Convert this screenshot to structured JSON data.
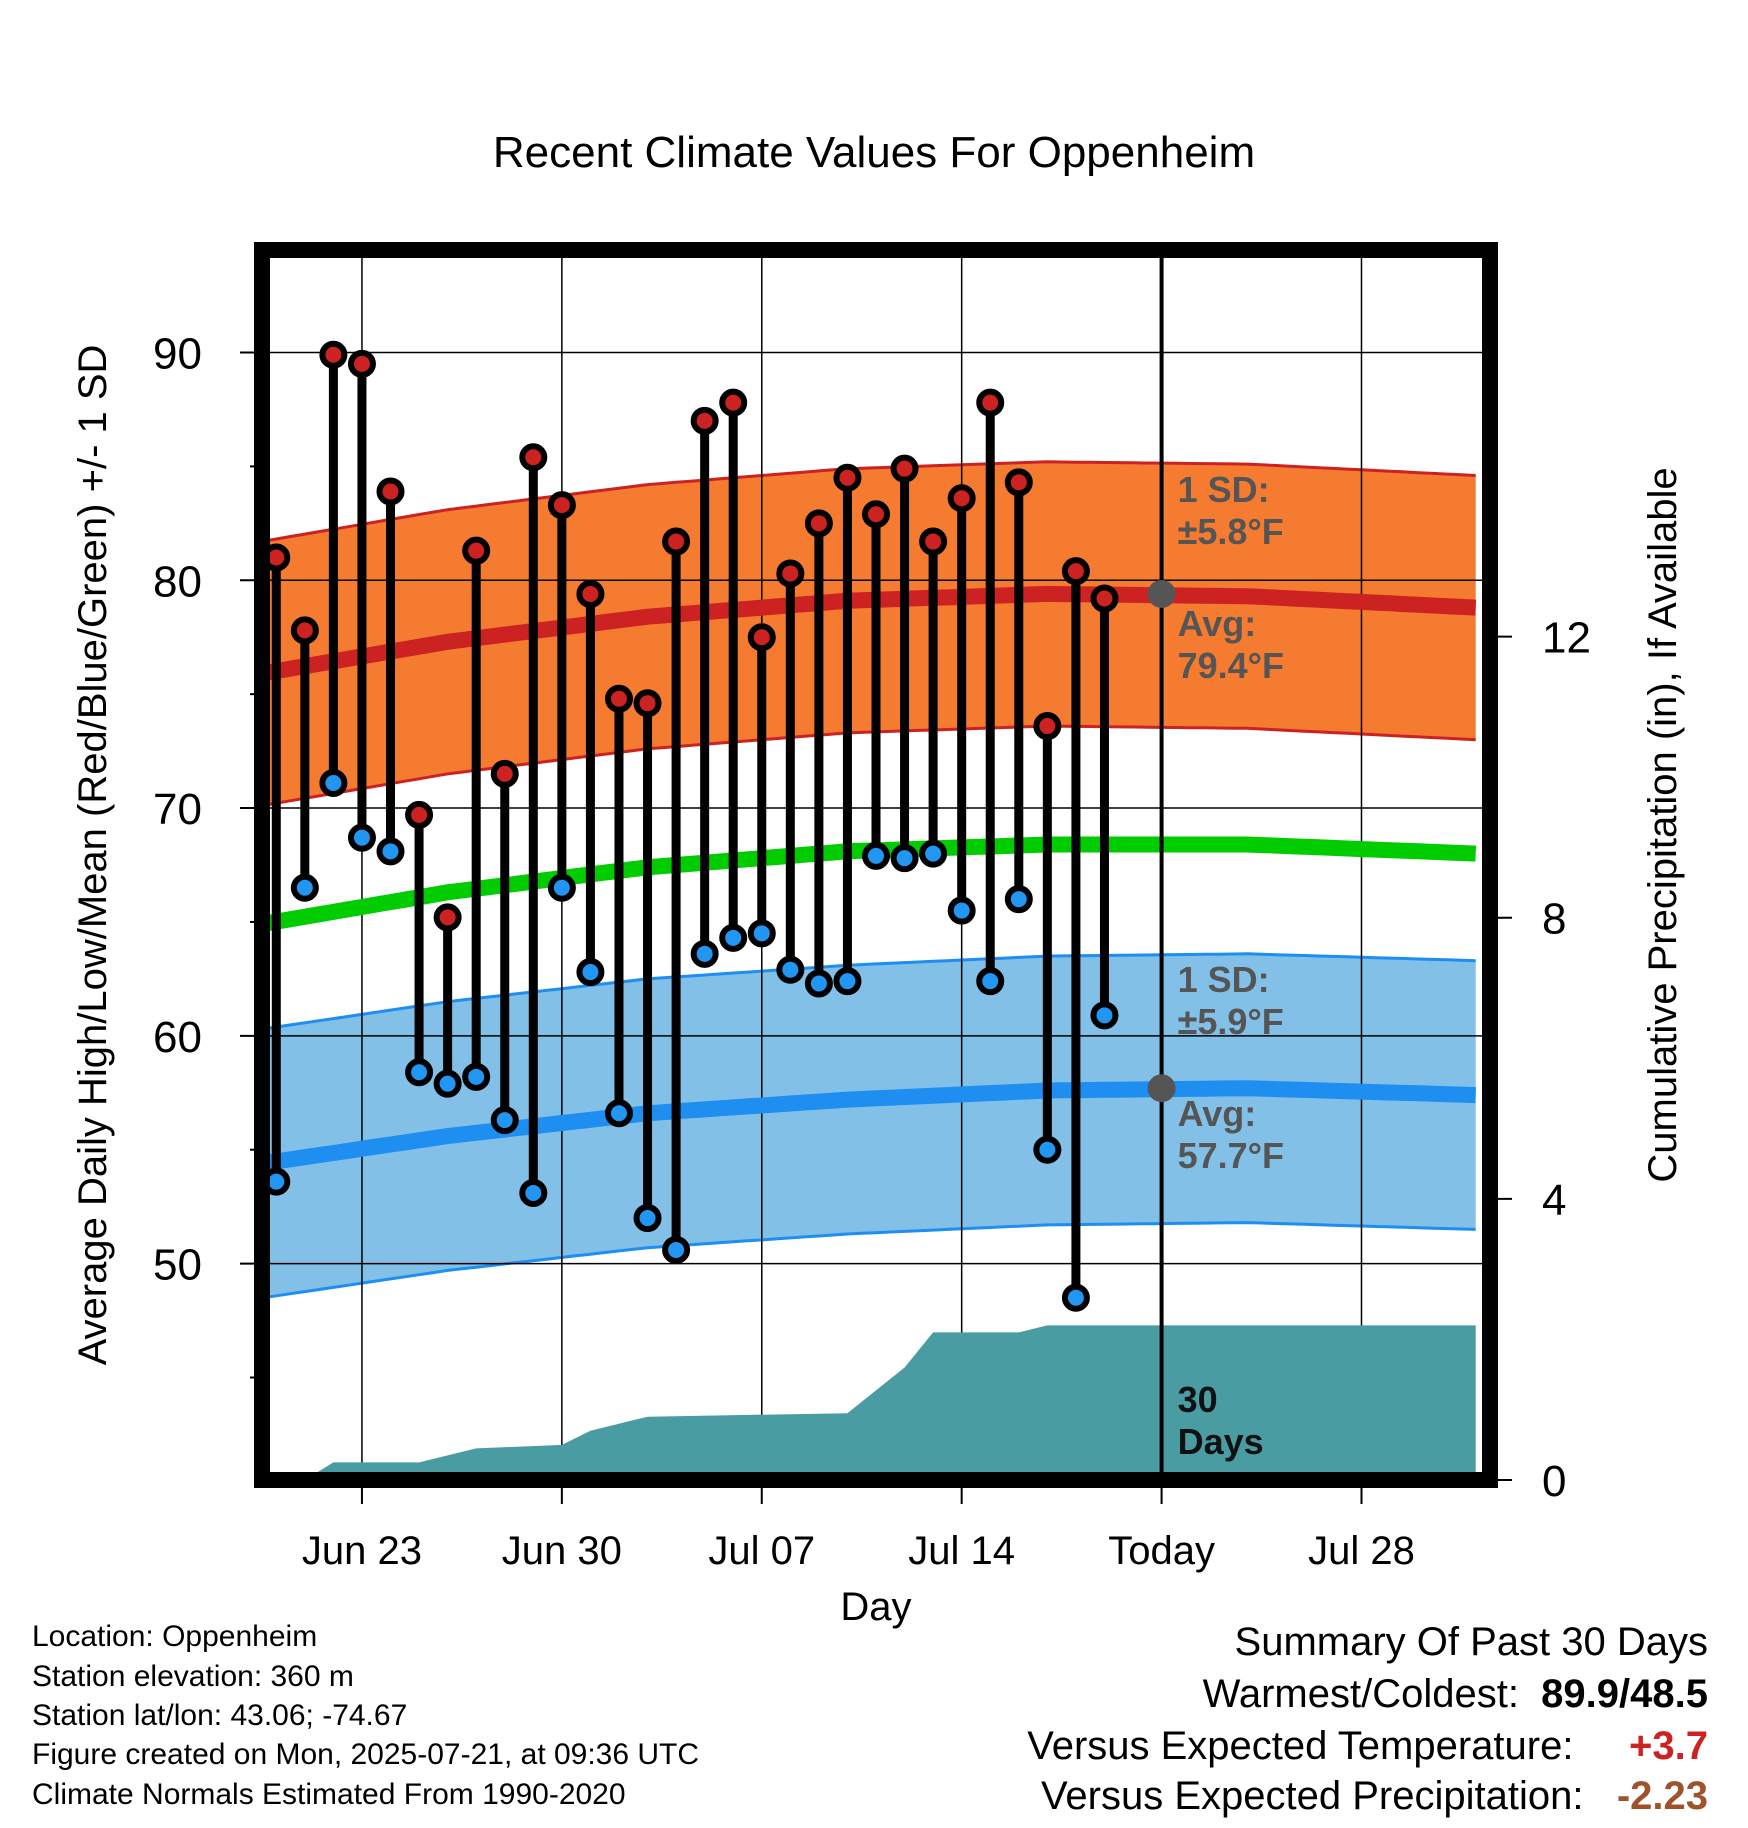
{
  "chart_data": {
    "type": "line",
    "title": "Recent Climate Values For Oppenheim",
    "xlabel": "Day",
    "ylabel": "Average Daily High/Low/Mean (Red/Blue/Green) +/- 1 SD",
    "y2label": "Cumulative Precipitation (in), If Available",
    "x_tick_labels": [
      "Jun 23",
      "Jun 30",
      "Jul 07",
      "Jul 14",
      "Today",
      "Jul 28"
    ],
    "x_tick_dates": [
      "2025-06-23",
      "2025-06-30",
      "2025-07-07",
      "2025-07-14",
      "2025-07-21",
      "2025-07-28"
    ],
    "xlim": [
      "2025-06-19 12:00",
      "2025-08-01 12:00"
    ],
    "today": "2025-07-21",
    "ylim": [
      40.5,
      94.5
    ],
    "yticks": [
      50,
      60,
      70,
      80,
      90
    ],
    "y2lim": [
      0,
      17.5
    ],
    "y2ticks": [
      0,
      4,
      8,
      12
    ],
    "grid": true,
    "days": [
      "2025-06-20",
      "2025-06-21",
      "2025-06-22",
      "2025-06-23",
      "2025-06-24",
      "2025-06-25",
      "2025-06-26",
      "2025-06-27",
      "2025-06-28",
      "2025-06-29",
      "2025-06-30",
      "2025-07-01",
      "2025-07-02",
      "2025-07-03",
      "2025-07-04",
      "2025-07-05",
      "2025-07-06",
      "2025-07-07",
      "2025-07-08",
      "2025-07-09",
      "2025-07-10",
      "2025-07-11",
      "2025-07-12",
      "2025-07-13",
      "2025-07-14",
      "2025-07-15",
      "2025-07-16",
      "2025-07-17",
      "2025-07-18",
      "2025-07-19",
      "2025-07-20"
    ],
    "series": [
      {
        "name": "High",
        "color": "#cc2222",
        "values": [
          81.0,
          77.8,
          89.9,
          89.5,
          83.9,
          69.7,
          65.2,
          81.3,
          71.5,
          85.4,
          83.3,
          79.4,
          74.8,
          74.6,
          81.7,
          87.0,
          87.8,
          77.5,
          80.3,
          82.5,
          84.5,
          82.9,
          84.9,
          81.7,
          83.6,
          87.8,
          84.3,
          73.6,
          80.4,
          79.2,
          null
        ]
      },
      {
        "name": "Low",
        "color": "#2196f3",
        "values": [
          53.6,
          66.5,
          71.1,
          68.7,
          68.1,
          58.4,
          57.9,
          58.2,
          56.3,
          53.1,
          66.5,
          62.8,
          56.6,
          52.0,
          50.6,
          63.6,
          64.3,
          64.5,
          62.9,
          62.3,
          62.4,
          67.9,
          67.8,
          68.0,
          65.5,
          62.4,
          66.0,
          55.0,
          48.5,
          60.9,
          null
        ]
      }
    ],
    "normals": {
      "high": {
        "color": "#cc2222",
        "sd_color": "#f47b30",
        "sd": 5.8,
        "points": [
          [
            "2025-06-19",
            75.8
          ],
          [
            "2025-06-26",
            77.3
          ],
          [
            "2025-07-03",
            78.4
          ],
          [
            "2025-07-10",
            79.1
          ],
          [
            "2025-07-17",
            79.4
          ],
          [
            "2025-07-24",
            79.3
          ],
          [
            "2025-08-01",
            78.8
          ]
        ]
      },
      "low": {
        "color": "#1e8ef0",
        "sd_color": "#82c0e8",
        "sd": 5.9,
        "points": [
          [
            "2025-06-19",
            54.3
          ],
          [
            "2025-06-26",
            55.6
          ],
          [
            "2025-07-03",
            56.6
          ],
          [
            "2025-07-10",
            57.2
          ],
          [
            "2025-07-17",
            57.6
          ],
          [
            "2025-07-24",
            57.7
          ],
          [
            "2025-08-01",
            57.4
          ]
        ]
      },
      "mean": {
        "color": "#00cc00",
        "points": [
          [
            "2025-06-19",
            64.8
          ],
          [
            "2025-06-26",
            66.3
          ],
          [
            "2025-07-03",
            67.4
          ],
          [
            "2025-07-10",
            68.1
          ],
          [
            "2025-07-17",
            68.4
          ],
          [
            "2025-07-24",
            68.4
          ],
          [
            "2025-08-01",
            68.0
          ]
        ]
      }
    },
    "precip_cumulative": {
      "color": "#4a9ca3",
      "points": [
        [
          "2025-06-21",
          0.0
        ],
        [
          "2025-06-22",
          0.25
        ],
        [
          "2025-06-25",
          0.25
        ],
        [
          "2025-06-27",
          0.45
        ],
        [
          "2025-06-30",
          0.5
        ],
        [
          "2025-07-01",
          0.7
        ],
        [
          "2025-07-03",
          0.9
        ],
        [
          "2025-07-10",
          0.95
        ],
        [
          "2025-07-12",
          1.6
        ],
        [
          "2025-07-13",
          2.1
        ],
        [
          "2025-07-16",
          2.1
        ],
        [
          "2025-07-17",
          2.2
        ],
        [
          "2025-08-01",
          2.2
        ]
      ]
    },
    "annotations": {
      "high_sd_line1": "1 SD:",
      "high_sd_line2": "±5.8°F",
      "high_avg_line1": "Avg:",
      "high_avg_line2": "79.4°F",
      "low_sd_line1": "1 SD:",
      "low_sd_line2": "±5.9°F",
      "low_avg_line1": "Avg:",
      "low_avg_line2": "57.7°F",
      "days_line1": "30",
      "days_line2": "Days"
    }
  },
  "footer": {
    "location": "Location: Oppenheim",
    "elevation": "Station elevation: 360 m",
    "latlon": "Station lat/lon: 43.06; -74.67",
    "created": "Figure created on Mon, 2025-07-21, at 09:36 UTC",
    "normals": "Climate Normals Estimated From 1990-2020"
  },
  "summary": {
    "heading": "Summary Of Past 30 Days",
    "warm_cold_label": "Warmest/Coldest:",
    "warm_cold_value": "89.9/48.5",
    "temp_label": "Versus Expected Temperature:",
    "temp_value": "+3.7",
    "temp_color": "#cc2222",
    "precip_label": "Versus Expected Precipitation:",
    "precip_value": "-2.23",
    "precip_color": "#a0522d"
  }
}
